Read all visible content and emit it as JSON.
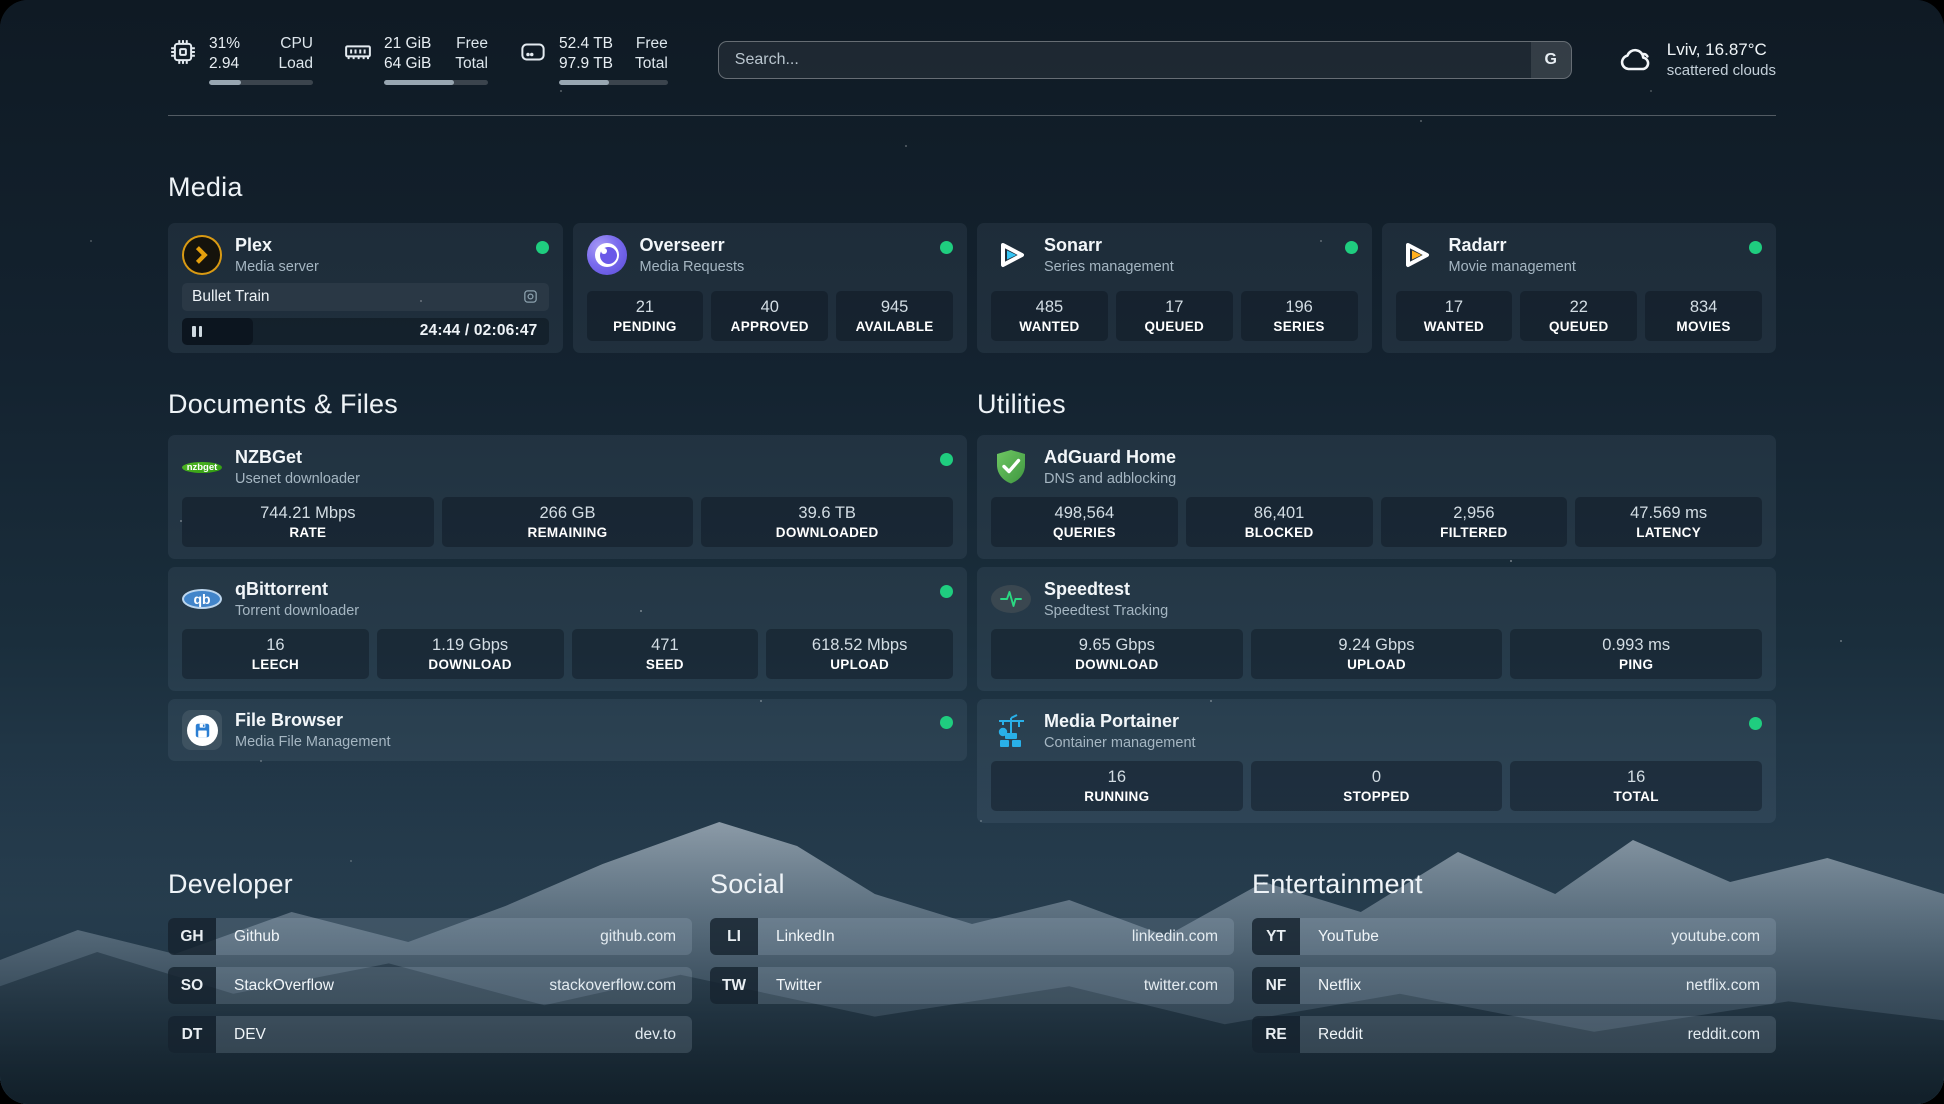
{
  "header": {
    "stats": [
      {
        "icon": "cpu-icon",
        "value_top": "31%",
        "value_bottom": "2.94",
        "label_top": "CPU",
        "label_bottom": "Load",
        "progress": 31
      },
      {
        "icon": "memory-icon",
        "value_top": "21 GiB",
        "value_bottom": "64 GiB",
        "label_top": "Free",
        "label_bottom": "Total",
        "progress": 67
      },
      {
        "icon": "disk-icon",
        "value_top": "52.4 TB",
        "value_bottom": "97.9 TB",
        "label_top": "Free",
        "label_bottom": "Total",
        "progress": 46
      }
    ],
    "search": {
      "placeholder": "Search...",
      "button_label": "G"
    },
    "weather": {
      "location_temp": "Lviv, 16.87°C",
      "condition": "scattered clouds"
    }
  },
  "sections": {
    "media_title": "Media",
    "documents_title": "Documents & Files",
    "utilities_title": "Utilities"
  },
  "services": {
    "plex": {
      "name": "Plex",
      "description": "Media server",
      "now_playing": "Bullet Train",
      "time": "24:44 / 02:06:47",
      "progress_pct": 19.5
    },
    "overseerr": {
      "name": "Overseerr",
      "description": "Media Requests",
      "stats": [
        {
          "value": "21",
          "label": "PENDING"
        },
        {
          "value": "40",
          "label": "APPROVED"
        },
        {
          "value": "945",
          "label": "AVAILABLE"
        }
      ]
    },
    "sonarr": {
      "name": "Sonarr",
      "description": "Series management",
      "stats": [
        {
          "value": "485",
          "label": "WANTED"
        },
        {
          "value": "17",
          "label": "QUEUED"
        },
        {
          "value": "196",
          "label": "SERIES"
        }
      ]
    },
    "radarr": {
      "name": "Radarr",
      "description": "Movie management",
      "stats": [
        {
          "value": "17",
          "label": "WANTED"
        },
        {
          "value": "22",
          "label": "QUEUED"
        },
        {
          "value": "834",
          "label": "MOVIES"
        }
      ]
    },
    "nzbget": {
      "name": "NZBGet",
      "description": "Usenet downloader",
      "logo_text": "nzbget",
      "stats": [
        {
          "value": "744.21 Mbps",
          "label": "RATE"
        },
        {
          "value": "266 GB",
          "label": "REMAINING"
        },
        {
          "value": "39.6 TB",
          "label": "DOWNLOADED"
        }
      ]
    },
    "qbittorrent": {
      "name": "qBittorrent",
      "description": "Torrent downloader",
      "logo_text": "qb",
      "stats": [
        {
          "value": "16",
          "label": "LEECH"
        },
        {
          "value": "1.19 Gbps",
          "label": "DOWNLOAD"
        },
        {
          "value": "471",
          "label": "SEED"
        },
        {
          "value": "618.52 Mbps",
          "label": "UPLOAD"
        }
      ]
    },
    "filebrowser": {
      "name": "File Browser",
      "description": "Media File Management"
    },
    "adguard": {
      "name": "AdGuard Home",
      "description": "DNS and adblocking",
      "stats": [
        {
          "value": "498,564",
          "label": "QUERIES"
        },
        {
          "value": "86,401",
          "label": "BLOCKED"
        },
        {
          "value": "2,956",
          "label": "FILTERED"
        },
        {
          "value": "47.569 ms",
          "label": "LATENCY"
        }
      ]
    },
    "speedtest": {
      "name": "Speedtest",
      "description": "Speedtest Tracking",
      "stats": [
        {
          "value": "9.65 Gbps",
          "label": "DOWNLOAD"
        },
        {
          "value": "9.24 Gbps",
          "label": "UPLOAD"
        },
        {
          "value": "0.993 ms",
          "label": "PING"
        }
      ]
    },
    "portainer": {
      "name": "Media Portainer",
      "description": "Container management",
      "stats": [
        {
          "value": "16",
          "label": "RUNNING"
        },
        {
          "value": "0",
          "label": "STOPPED"
        },
        {
          "value": "16",
          "label": "TOTAL"
        }
      ]
    }
  },
  "bookmarks": {
    "developer": {
      "title": "Developer",
      "items": [
        {
          "abbr": "GH",
          "name": "Github",
          "url": "github.com"
        },
        {
          "abbr": "SO",
          "name": "StackOverflow",
          "url": "stackoverflow.com"
        },
        {
          "abbr": "DT",
          "name": "DEV",
          "url": "dev.to"
        }
      ]
    },
    "social": {
      "title": "Social",
      "items": [
        {
          "abbr": "LI",
          "name": "LinkedIn",
          "url": "linkedin.com"
        },
        {
          "abbr": "TW",
          "name": "Twitter",
          "url": "twitter.com"
        }
      ]
    },
    "entertainment": {
      "title": "Entertainment",
      "items": [
        {
          "abbr": "YT",
          "name": "YouTube",
          "url": "youtube.com"
        },
        {
          "abbr": "NF",
          "name": "Netflix",
          "url": "netflix.com"
        },
        {
          "abbr": "RE",
          "name": "Reddit",
          "url": "reddit.com"
        }
      ]
    }
  },
  "colors": {
    "status_online": "#1fcd7f"
  }
}
